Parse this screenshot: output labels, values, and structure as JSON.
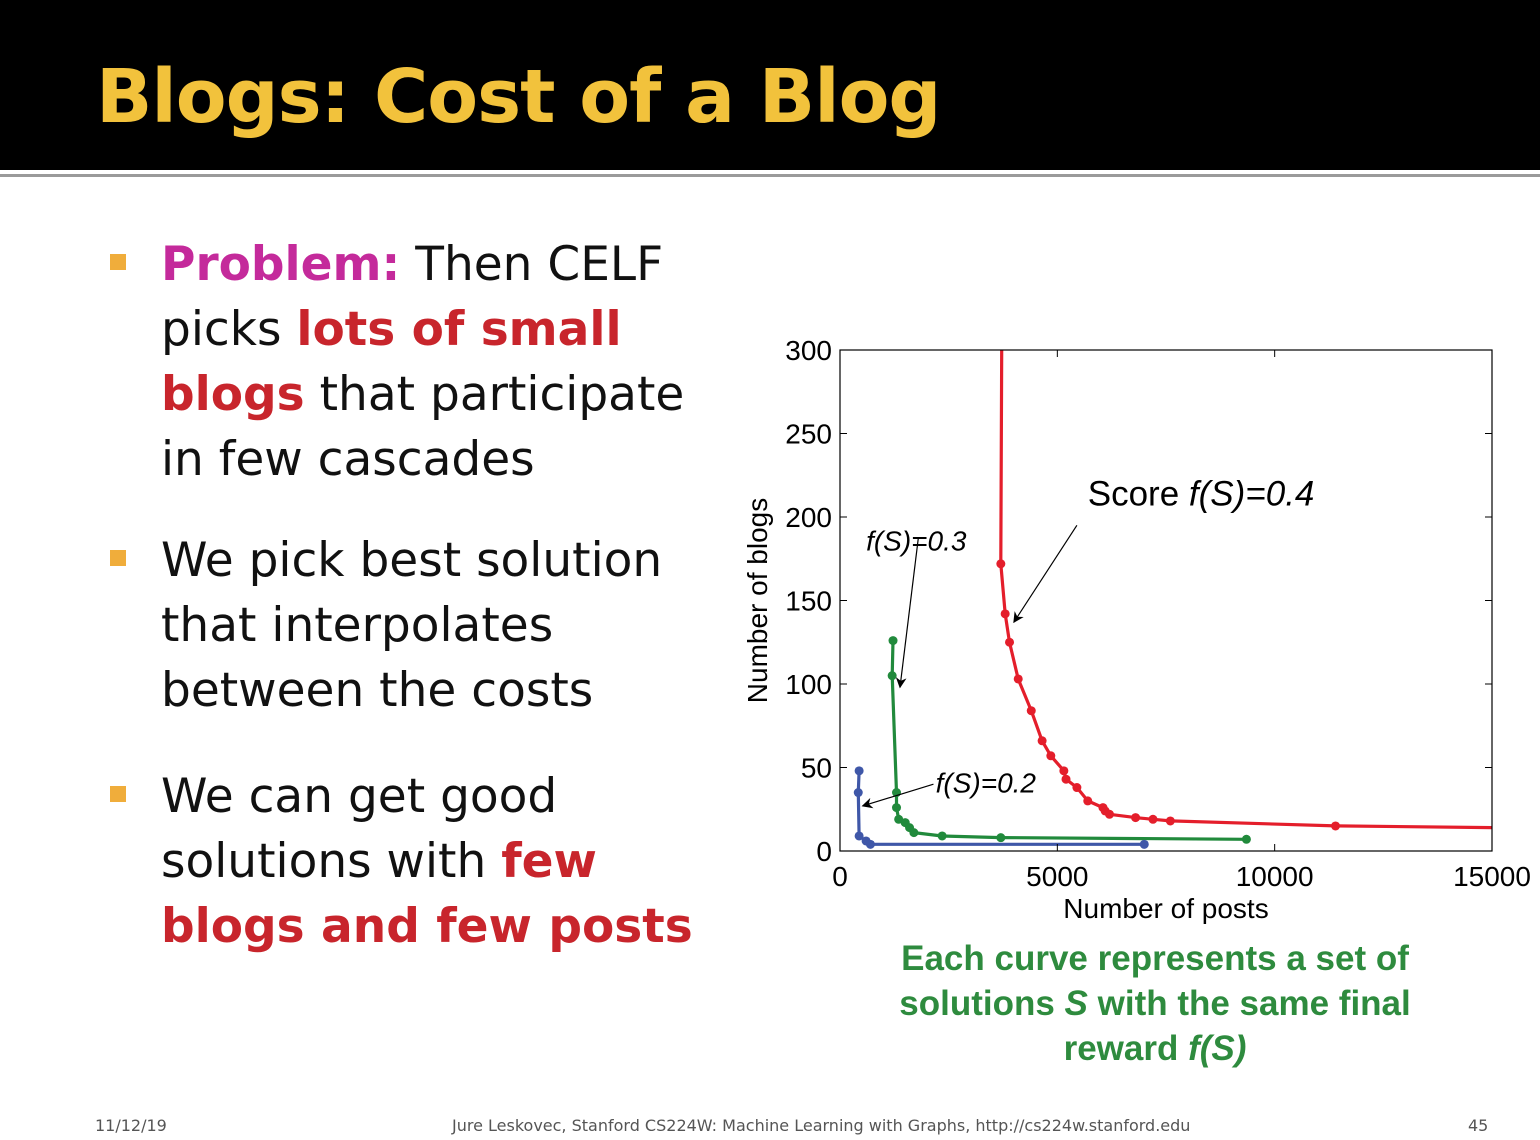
{
  "slide": {
    "title": "Blogs: Cost of a Blog"
  },
  "bullets": [
    {
      "parts": [
        {
          "text": "Problem:",
          "style": "kw-purple"
        },
        {
          "text": " Then CELF picks ",
          "style": ""
        },
        {
          "text": "lots of small blogs",
          "style": "kw-red"
        },
        {
          "text": " that participate in few cascades",
          "style": ""
        }
      ]
    },
    {
      "parts": [
        {
          "text": "We pick best solution that interpolates between the costs",
          "style": ""
        }
      ]
    },
    {
      "parts": [
        {
          "text": "We can get good solutions with ",
          "style": ""
        },
        {
          "text": "few blogs and few posts",
          "style": "kw-red"
        }
      ]
    }
  ],
  "caption": {
    "line1": "Each curve represents a set of",
    "line2_pre": "solutions ",
    "line2_var": "S",
    "line2_post": " with the same final",
    "line3_pre": "reward ",
    "line3_var": "f(S)"
  },
  "footer": {
    "date": "11/12/19",
    "credit": "Jure Leskovec, Stanford CS224W: Machine Learning with Graphs, http://cs224w.stanford.edu",
    "page": "45"
  },
  "chart_data": {
    "type": "line",
    "xlabel": "Number of posts",
    "ylabel": "Number of blogs",
    "xlim": [
      0,
      15000
    ],
    "ylim": [
      0,
      300
    ],
    "xticks": [
      0,
      5000,
      10000,
      15000
    ],
    "yticks": [
      0,
      50,
      100,
      150,
      200,
      250,
      300
    ],
    "grid": false,
    "series": [
      {
        "name": "Score f(S)=0.4",
        "color": "#e41e2b",
        "line_only": [
          [
            3720,
            300
          ],
          [
            3700,
            172
          ]
        ],
        "points": [
          [
            3700,
            172
          ],
          [
            3800,
            142
          ],
          [
            3900,
            125
          ],
          [
            4100,
            103
          ],
          [
            4400,
            84
          ],
          [
            4650,
            66
          ],
          [
            4850,
            57
          ],
          [
            5150,
            48
          ],
          [
            5200,
            43
          ],
          [
            5450,
            38
          ],
          [
            5700,
            30
          ],
          [
            6050,
            26
          ],
          [
            6100,
            24
          ],
          [
            6200,
            22
          ],
          [
            6800,
            20
          ],
          [
            7200,
            19
          ],
          [
            7600,
            18
          ],
          [
            11400,
            15
          ]
        ],
        "tail": [
          [
            15000,
            14
          ]
        ]
      },
      {
        "name": "f(S)=0.3",
        "color": "#218a3c",
        "points": [
          [
            1220,
            126
          ],
          [
            1200,
            105
          ],
          [
            1300,
            35
          ],
          [
            1300,
            26
          ],
          [
            1350,
            19
          ],
          [
            1500,
            17
          ],
          [
            1600,
            14
          ],
          [
            1700,
            11
          ],
          [
            2350,
            9
          ],
          [
            3700,
            8
          ],
          [
            9350,
            7
          ]
        ],
        "tail": []
      },
      {
        "name": "f(S)=0.2",
        "color": "#3f57a8",
        "points": [
          [
            440,
            48
          ],
          [
            420,
            35
          ],
          [
            440,
            9
          ],
          [
            600,
            6
          ],
          [
            700,
            4
          ],
          [
            7000,
            4
          ]
        ],
        "tail": []
      }
    ],
    "annotations": [
      {
        "text_prefix": "Score ",
        "text_var": "f(S)=0.4",
        "tx": 5700,
        "ty": 207,
        "ax": 5450,
        "ay": 195,
        "hx": 4000,
        "hy": 137
      },
      {
        "text_prefix": "",
        "text_var": "f(S)=0.3",
        "tx": 600,
        "ty": 180,
        "ax": 1800,
        "ay": 187,
        "hx": 1380,
        "hy": 98
      },
      {
        "text_prefix": "",
        "text_var": "f(S)=0.2",
        "tx": 2200,
        "ty": 35,
        "ax": 2150,
        "ay": 40,
        "hx": 520,
        "hy": 27
      }
    ]
  }
}
